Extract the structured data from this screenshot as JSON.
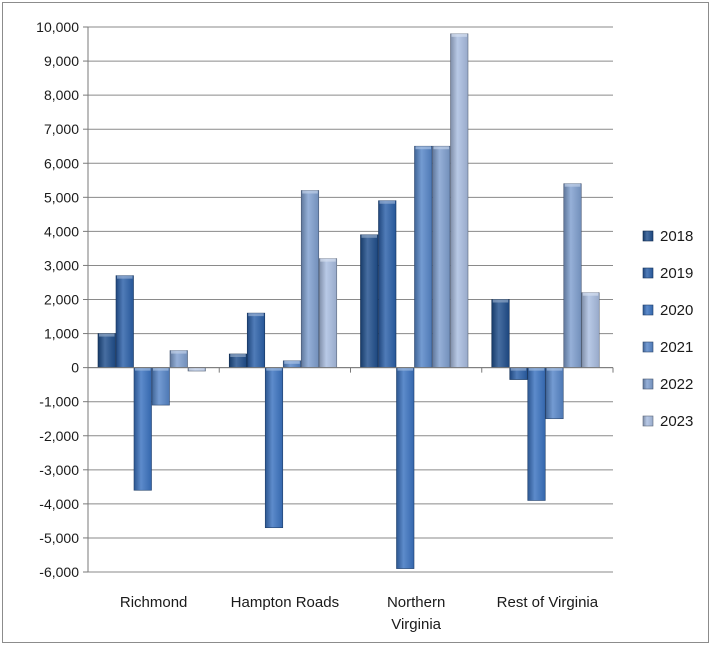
{
  "chart_data": {
    "type": "bar",
    "title": "",
    "xlabel": "",
    "ylabel": "",
    "categories": [
      [
        "Richmond"
      ],
      [
        "Hampton Roads"
      ],
      [
        "Northern",
        "Virginia"
      ],
      [
        "Rest of Virginia"
      ]
    ],
    "ylim": [
      -6000,
      10000
    ],
    "yticks": [
      10000,
      9000,
      8000,
      7000,
      6000,
      5000,
      4000,
      3000,
      2000,
      1000,
      0,
      -1000,
      -2000,
      -3000,
      -4000,
      -5000,
      -6000
    ],
    "ytick_labels": [
      "10,000",
      "9,000",
      "8,000",
      "7,000",
      "6,000",
      "5,000",
      "4,000",
      "3,000",
      "2,000",
      "1,000",
      "0",
      "-1,000",
      "-2,000",
      "-3,000",
      "-4,000",
      "-5,000",
      "-6,000"
    ],
    "grid": true,
    "legend_position": "right",
    "series": [
      {
        "name": "2018",
        "values": [
          1000,
          400,
          3900,
          2000
        ],
        "color": "#1f4e8c"
      },
      {
        "name": "2019",
        "values": [
          2700,
          1600,
          4900,
          -350
        ],
        "color": "#2a5fa8"
      },
      {
        "name": "2020",
        "values": [
          -3600,
          -4700,
          -5900,
          -3900
        ],
        "color": "#3a72c0"
      },
      {
        "name": "2021",
        "values": [
          -1100,
          200,
          6500,
          -1500
        ],
        "color": "#5585c8"
      },
      {
        "name": "2022",
        "values": [
          500,
          5200,
          6500,
          5400
        ],
        "color": "#7f9fcf"
      },
      {
        "name": "2023",
        "values": [
          -100,
          3200,
          9800,
          2200
        ],
        "color": "#a9bde0"
      }
    ]
  }
}
